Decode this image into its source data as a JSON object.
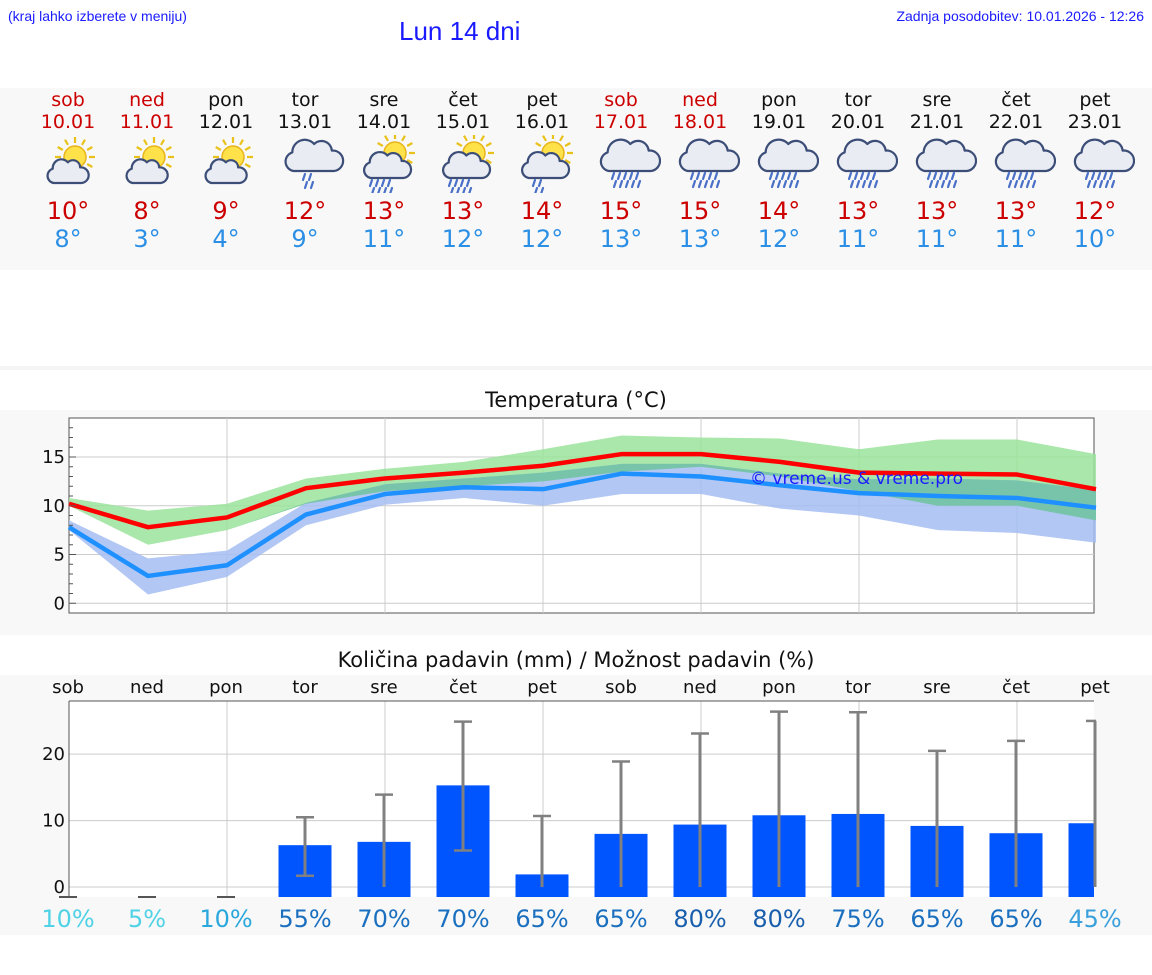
{
  "header": {
    "hint": "(kraj lahko izberete v meniju)",
    "title": "Lun 14 dni",
    "updated": "Zadnja posodobitev: 10.01.2026 - 12:26"
  },
  "days": [
    {
      "name": "sob",
      "date": "10.01",
      "icon": "sun-cloud-icon",
      "max": "10°",
      "min": "8°",
      "weekend": true
    },
    {
      "name": "ned",
      "date": "11.01",
      "icon": "sun-cloud-icon",
      "max": "8°",
      "min": "3°",
      "weekend": true
    },
    {
      "name": "pon",
      "date": "12.01",
      "icon": "sun-cloud-icon",
      "max": "9°",
      "min": "4°",
      "weekend": false
    },
    {
      "name": "tor",
      "date": "13.01",
      "icon": "cloud-light-rain-icon",
      "max": "12°",
      "min": "9°",
      "weekend": false
    },
    {
      "name": "sre",
      "date": "14.01",
      "icon": "sun-cloud-rain-icon",
      "max": "13°",
      "min": "11°",
      "weekend": false
    },
    {
      "name": "čet",
      "date": "15.01",
      "icon": "sun-cloud-rain-icon",
      "max": "13°",
      "min": "12°",
      "weekend": false
    },
    {
      "name": "pet",
      "date": "16.01",
      "icon": "sun-cloud-light-rain-icon",
      "max": "14°",
      "min": "12°",
      "weekend": false
    },
    {
      "name": "sob",
      "date": "17.01",
      "icon": "cloud-rain-icon",
      "max": "15°",
      "min": "13°",
      "weekend": true
    },
    {
      "name": "ned",
      "date": "18.01",
      "icon": "cloud-rain-icon",
      "max": "15°",
      "min": "13°",
      "weekend": true
    },
    {
      "name": "pon",
      "date": "19.01",
      "icon": "cloud-rain-icon",
      "max": "14°",
      "min": "12°",
      "weekend": false
    },
    {
      "name": "tor",
      "date": "20.01",
      "icon": "cloud-rain-icon",
      "max": "13°",
      "min": "11°",
      "weekend": false
    },
    {
      "name": "sre",
      "date": "21.01",
      "icon": "cloud-rain-icon",
      "max": "13°",
      "min": "11°",
      "weekend": false
    },
    {
      "name": "čet",
      "date": "22.01",
      "icon": "cloud-rain-icon",
      "max": "13°",
      "min": "11°",
      "weekend": false
    },
    {
      "name": "pet",
      "date": "23.01",
      "icon": "cloud-rain-icon",
      "max": "12°",
      "min": "10°",
      "weekend": false
    }
  ],
  "colors": {
    "weekend": "#cc0000",
    "max_line": "#ff0000",
    "min_line": "#1e90ff",
    "max_band": "#9be39b",
    "min_band": "#a4bdf2",
    "overlap_band": "#6ec4a0",
    "bar": "#0055ff",
    "whisker": "#808080"
  },
  "chart_data": [
    {
      "type": "line",
      "title": "Temperatura (°C)",
      "watermark": "© vreme.us & vreme.pro",
      "x": [
        0,
        1,
        2,
        3,
        4,
        5,
        6,
        7,
        8,
        9,
        10,
        11,
        12,
        13
      ],
      "ylim": [
        -1,
        19
      ],
      "yticks": [
        0,
        5,
        10,
        15
      ],
      "grid": true,
      "series": [
        {
          "name": "max",
          "values": [
            10.2,
            7.8,
            8.8,
            11.8,
            12.8,
            13.4,
            14.1,
            15.3,
            15.3,
            14.5,
            13.4,
            13.3,
            13.2,
            11.7
          ]
        },
        {
          "name": "min",
          "values": [
            7.8,
            2.8,
            3.9,
            9.1,
            11.2,
            11.9,
            11.7,
            13.3,
            13.0,
            12.1,
            11.3,
            11.0,
            10.8,
            9.8
          ]
        },
        {
          "name": "max_low",
          "values": [
            10.0,
            6.0,
            7.5,
            10.2,
            11.5,
            12.0,
            12.5,
            13.5,
            14.0,
            13.0,
            11.5,
            10.0,
            10.0,
            8.5
          ]
        },
        {
          "name": "max_high",
          "values": [
            10.8,
            9.5,
            10.2,
            12.8,
            13.8,
            14.5,
            15.8,
            17.2,
            17.0,
            16.9,
            15.8,
            16.8,
            16.8,
            15.3
          ]
        },
        {
          "name": "min_low",
          "values": [
            7.5,
            0.9,
            2.7,
            8.0,
            10.1,
            10.8,
            10.0,
            11.2,
            11.2,
            9.7,
            9.0,
            7.5,
            7.2,
            6.2
          ]
        },
        {
          "name": "min_high",
          "values": [
            8.5,
            4.6,
            5.4,
            10.3,
            12.2,
            12.8,
            13.4,
            14.3,
            14.3,
            13.3,
            12.7,
            12.8,
            12.6,
            11.6
          ]
        }
      ]
    },
    {
      "type": "bar",
      "title": "Količina padavin (mm) / Možnost padavin (%)",
      "categories": [
        "sob",
        "ned",
        "pon",
        "tor",
        "sre",
        "čet",
        "pet",
        "sob",
        "ned",
        "pon",
        "tor",
        "sre",
        "čet",
        "pet"
      ],
      "values": [
        0,
        0,
        0,
        6.3,
        6.8,
        15.3,
        1.9,
        8.0,
        9.4,
        10.8,
        11.0,
        9.2,
        8.1,
        9.6
      ],
      "error_low": [
        0,
        0,
        0,
        1.7,
        0,
        5.5,
        0,
        0,
        0,
        0,
        0,
        0,
        0,
        0
      ],
      "error_high": [
        0,
        0,
        0,
        10.5,
        13.9,
        24.9,
        10.7,
        18.9,
        23.1,
        26.4,
        26.3,
        20.5,
        22.0,
        25.0
      ],
      "probability": [
        "10%",
        "5%",
        "10%",
        "55%",
        "70%",
        "70%",
        "65%",
        "65%",
        "80%",
        "80%",
        "75%",
        "65%",
        "65%",
        "45%"
      ],
      "probability_colors": [
        "#4fd2e6",
        "#4fd2e6",
        "#2aa8dc",
        "#1a6fbf",
        "#1a6fbf",
        "#1a6fbf",
        "#1a6fbf",
        "#1a6fbf",
        "#1a5fad",
        "#1a5fad",
        "#1a6fbf",
        "#1a6fbf",
        "#1a6fbf",
        "#3aa0dc"
      ],
      "ylim": [
        -1.5,
        28
      ],
      "yticks": [
        0,
        10,
        20
      ],
      "grid": true
    }
  ]
}
